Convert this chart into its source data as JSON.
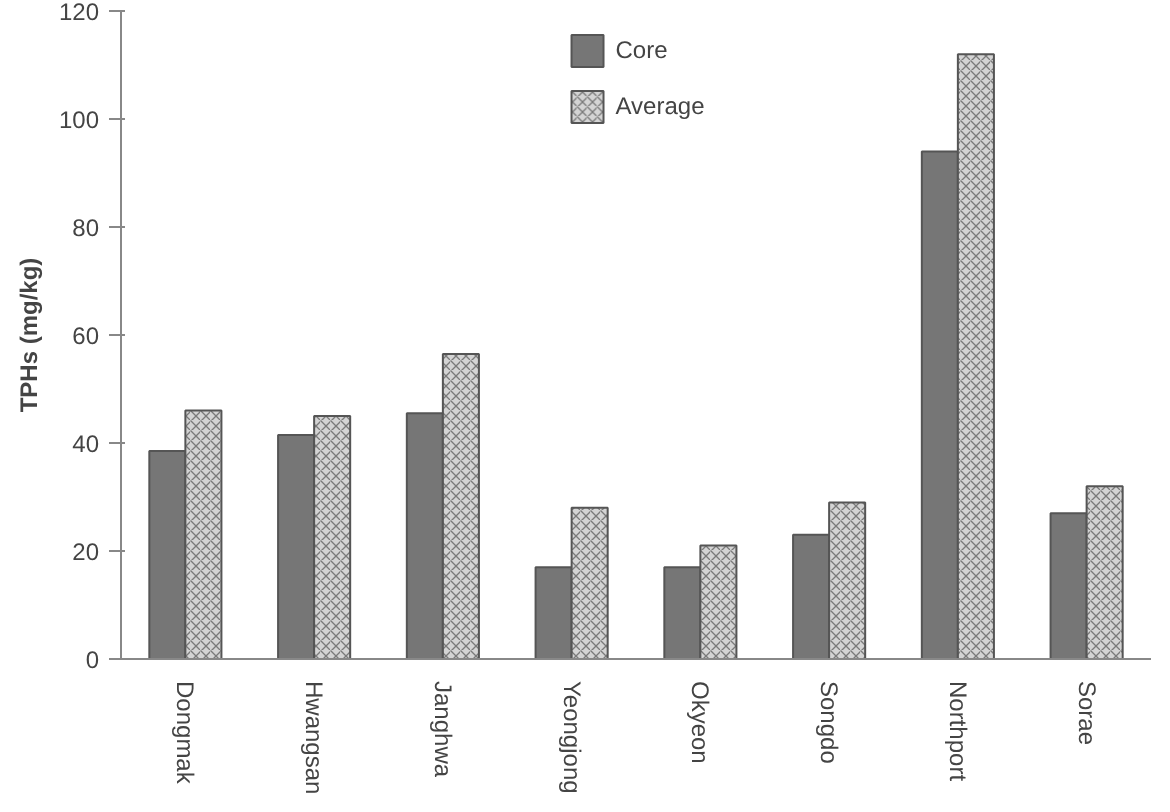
{
  "chart_data": {
    "type": "bar",
    "ylabel": "TPHs (mg/kg)",
    "categories": [
      "Dongmak",
      "Hwangsan",
      "Janghwa",
      "Yeongjong",
      "Okyeon",
      "Songdo",
      "Northport",
      "Sorae"
    ],
    "series": [
      {
        "name": "Core",
        "color": "#767676",
        "values": [
          38.5,
          41.5,
          45.5,
          17,
          17,
          23,
          94,
          27
        ]
      },
      {
        "name": "Average",
        "color": "#d4d4d4",
        "values": [
          46,
          45,
          56.5,
          28,
          21,
          29,
          112,
          32
        ]
      }
    ],
    "ylim": [
      0,
      120
    ],
    "yticks": [
      0,
      20,
      40,
      60,
      80,
      100,
      120
    ],
    "grid": false,
    "legend": "top"
  }
}
